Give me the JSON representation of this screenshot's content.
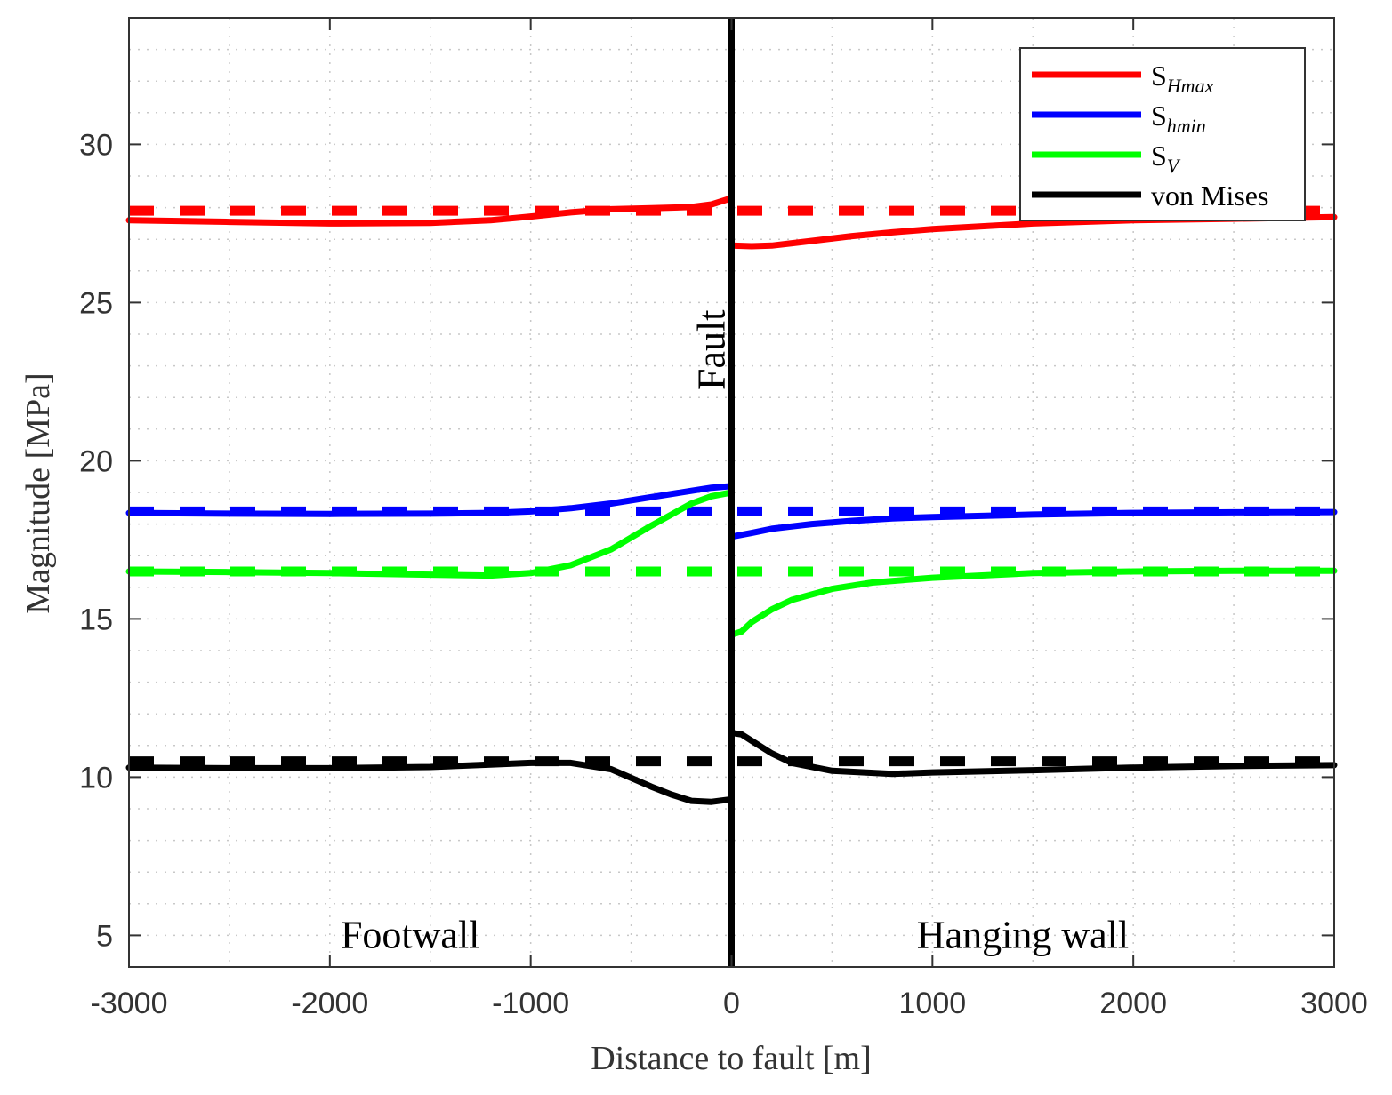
{
  "chart_data": {
    "type": "line",
    "title": "",
    "xlabel": "Distance to fault [m]",
    "ylabel": "Magnitude [MPa]",
    "xlim": [
      -3000,
      3000
    ],
    "ylim": [
      4,
      34
    ],
    "xticks": [
      -3000,
      -2000,
      -1000,
      0,
      1000,
      2000,
      3000
    ],
    "xtick_labels": [
      "-3000",
      "-2000",
      "-1000",
      "0",
      "1000",
      "2000",
      "3000"
    ],
    "yticks": [
      5,
      10,
      15,
      20,
      25,
      30
    ],
    "ytick_labels": [
      "5",
      "10",
      "15",
      "20",
      "25",
      "30"
    ],
    "grid": "minor dotted",
    "legend_placement": "top-right",
    "annotations": [
      {
        "text": "Fault",
        "x": 0,
        "y": 23.5,
        "rotation": "vertical"
      },
      {
        "text": "Footwall",
        "x": -1600,
        "y": 5
      },
      {
        "text": "Hanging wall",
        "x": 1450,
        "y": 5
      }
    ],
    "fault_line_x": 0,
    "series": [
      {
        "name": "SHmax",
        "label_main": "S",
        "label_sub": "Hmax",
        "color": "#ff0000",
        "style": "solid",
        "x": [
          -3000,
          -2500,
          -2000,
          -1500,
          -1200,
          -1000,
          -800,
          -600,
          -400,
          -200,
          -100,
          0,
          0,
          100,
          200,
          400,
          600,
          800,
          1000,
          1500,
          2000,
          2500,
          3000
        ],
        "y": [
          27.6,
          27.55,
          27.5,
          27.52,
          27.6,
          27.72,
          27.85,
          27.95,
          27.98,
          28.02,
          28.1,
          28.3,
          26.8,
          26.78,
          26.8,
          26.95,
          27.1,
          27.22,
          27.32,
          27.5,
          27.6,
          27.65,
          27.7
        ]
      },
      {
        "name": "SHmax reference",
        "color": "#ff0000",
        "style": "dashed",
        "x": [
          -3000,
          3000
        ],
        "y": [
          27.9,
          27.9
        ]
      },
      {
        "name": "Shmin",
        "label_main": "S",
        "label_sub": "hmin",
        "color": "#0000ff",
        "style": "solid",
        "x": [
          -3000,
          -2500,
          -2000,
          -1500,
          -1200,
          -1000,
          -800,
          -600,
          -400,
          -200,
          -100,
          0,
          0,
          100,
          200,
          400,
          600,
          800,
          1000,
          1500,
          2000,
          2500,
          3000
        ],
        "y": [
          18.35,
          18.33,
          18.32,
          18.33,
          18.35,
          18.4,
          18.5,
          18.65,
          18.85,
          19.05,
          19.15,
          19.2,
          17.6,
          17.72,
          17.85,
          18.0,
          18.1,
          18.18,
          18.22,
          18.3,
          18.35,
          18.37,
          18.38
        ]
      },
      {
        "name": "Shmin reference",
        "color": "#0000ff",
        "style": "dashed",
        "x": [
          -3000,
          3000
        ],
        "y": [
          18.4,
          18.4
        ]
      },
      {
        "name": "SV",
        "label_main": "S",
        "label_sub": "V",
        "color": "#00ff00",
        "style": "solid",
        "x": [
          -3000,
          -2500,
          -2000,
          -1500,
          -1200,
          -1000,
          -800,
          -600,
          -400,
          -300,
          -200,
          -100,
          0,
          0,
          50,
          100,
          200,
          300,
          500,
          700,
          1000,
          1500,
          2000,
          2500,
          3000
        ],
        "y": [
          16.5,
          16.48,
          16.45,
          16.4,
          16.37,
          16.45,
          16.7,
          17.2,
          17.95,
          18.3,
          18.65,
          18.88,
          19.0,
          14.5,
          14.6,
          14.9,
          15.3,
          15.6,
          15.95,
          16.15,
          16.3,
          16.45,
          16.5,
          16.52,
          16.52
        ]
      },
      {
        "name": "SV reference",
        "color": "#00ff00",
        "style": "dashed",
        "x": [
          -3000,
          3000
        ],
        "y": [
          16.5,
          16.5
        ]
      },
      {
        "name": "von Mises",
        "label_main": "von Mises",
        "label_sub": "",
        "color": "#000000",
        "style": "solid",
        "x": [
          -3000,
          -2500,
          -2000,
          -1500,
          -1200,
          -1000,
          -800,
          -600,
          -400,
          -300,
          -200,
          -100,
          0,
          0,
          50,
          100,
          200,
          300,
          500,
          800,
          1000,
          1500,
          2000,
          2500,
          3000
        ],
        "y": [
          10.3,
          10.28,
          10.28,
          10.32,
          10.4,
          10.45,
          10.45,
          10.25,
          9.7,
          9.45,
          9.25,
          9.22,
          9.3,
          11.4,
          11.35,
          11.15,
          10.75,
          10.45,
          10.2,
          10.1,
          10.15,
          10.22,
          10.3,
          10.35,
          10.38
        ]
      },
      {
        "name": "von Mises reference",
        "color": "#000000",
        "style": "dashed",
        "x": [
          -3000,
          3000
        ],
        "y": [
          10.5,
          10.5
        ]
      }
    ]
  }
}
